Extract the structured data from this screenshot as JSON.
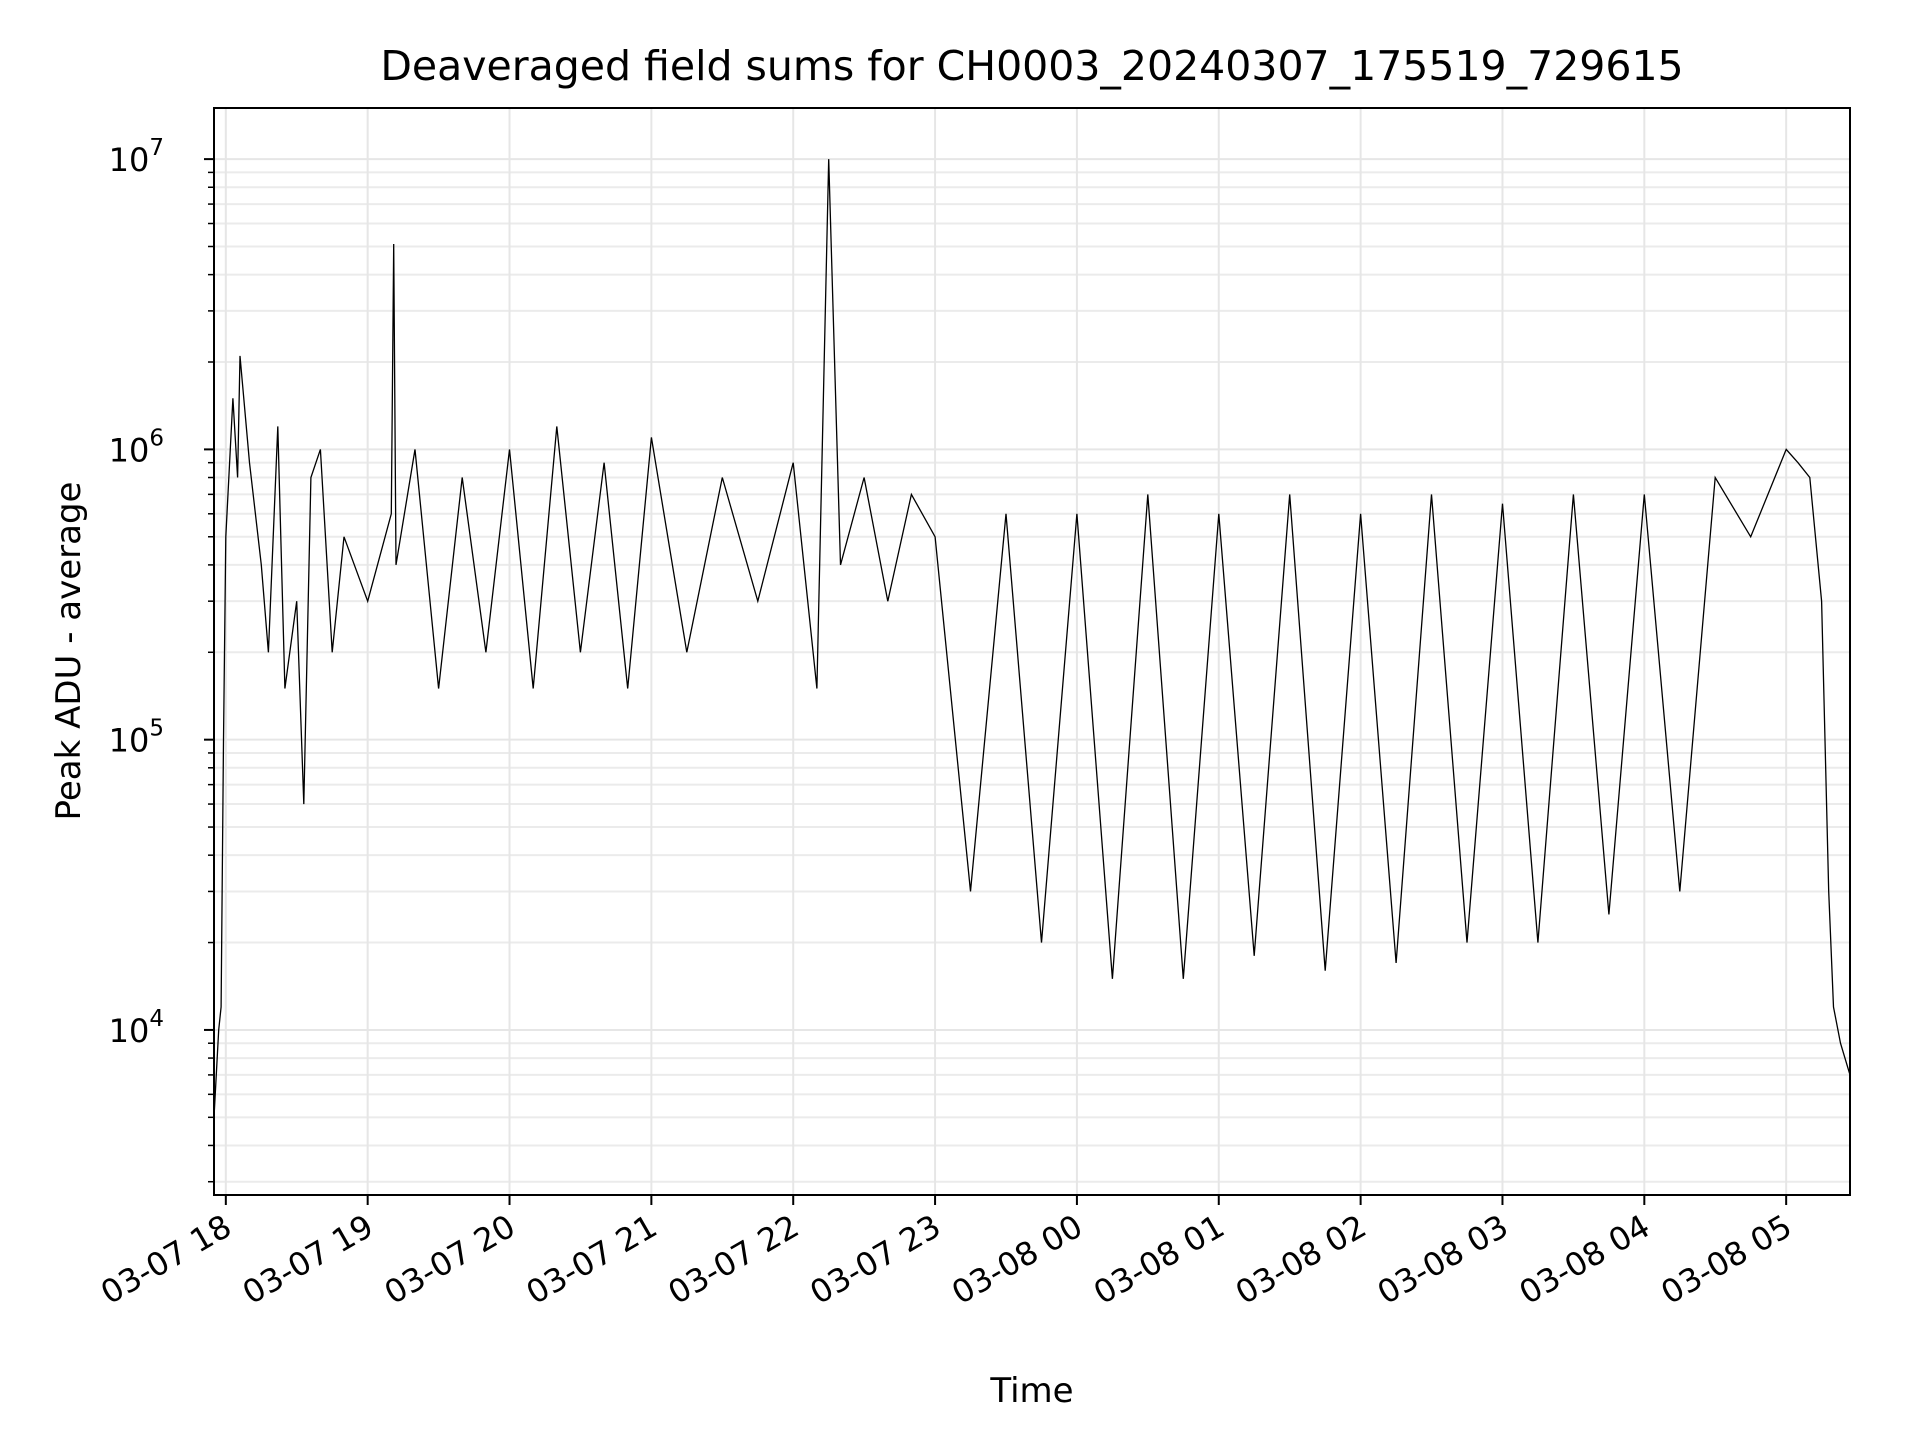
{
  "chart_data": {
    "type": "line",
    "title": "Deaveraged field sums for CH0003_20240307_175519_729615",
    "xlabel": "Time",
    "ylabel": "Peak ADU - average",
    "yscale": "log",
    "ylim": [
      2700,
      15000000
    ],
    "xlim": [
      "2024-03-07 17:55",
      "2024-03-08 05:27"
    ],
    "x_ticks": [
      {
        "t": "2024-03-07 18:00",
        "label": "03-07 18"
      },
      {
        "t": "2024-03-07 19:00",
        "label": "03-07 19"
      },
      {
        "t": "2024-03-07 20:00",
        "label": "03-07 20"
      },
      {
        "t": "2024-03-07 21:00",
        "label": "03-07 21"
      },
      {
        "t": "2024-03-07 22:00",
        "label": "03-07 22"
      },
      {
        "t": "2024-03-07 23:00",
        "label": "03-07 23"
      },
      {
        "t": "2024-03-08 00:00",
        "label": "03-08 00"
      },
      {
        "t": "2024-03-08 01:00",
        "label": "03-08 01"
      },
      {
        "t": "2024-03-08 02:00",
        "label": "03-08 02"
      },
      {
        "t": "2024-03-08 03:00",
        "label": "03-08 03"
      },
      {
        "t": "2024-03-08 04:00",
        "label": "03-08 04"
      },
      {
        "t": "2024-03-08 05:00",
        "label": "03-08 05"
      }
    ],
    "y_ticks": [
      {
        "value": 10000,
        "base": "10",
        "exp": "4"
      },
      {
        "value": 100000,
        "base": "10",
        "exp": "5"
      },
      {
        "value": 1000000,
        "base": "10",
        "exp": "6"
      },
      {
        "value": 10000000,
        "base": "10",
        "exp": "7"
      }
    ],
    "grid": true,
    "line_color": "#000000",
    "series": [
      {
        "x": [
          "2024-03-07 17:55",
          "2024-03-07 17:57",
          "2024-03-07 17:58",
          "2024-03-07 17:59",
          "2024-03-07 18:00",
          "2024-03-07 18:03",
          "2024-03-07 18:05",
          "2024-03-07 18:06",
          "2024-03-07 18:10",
          "2024-03-07 18:15",
          "2024-03-07 18:18",
          "2024-03-07 18:22",
          "2024-03-07 18:25",
          "2024-03-07 18:30",
          "2024-03-07 18:33",
          "2024-03-07 18:36",
          "2024-03-07 18:40",
          "2024-03-07 18:45",
          "2024-03-07 18:50",
          "2024-03-07 19:00",
          "2024-03-07 19:10",
          "2024-03-07 19:11",
          "2024-03-07 19:12",
          "2024-03-07 19:20",
          "2024-03-07 19:30",
          "2024-03-07 19:40",
          "2024-03-07 19:50",
          "2024-03-07 20:00",
          "2024-03-07 20:10",
          "2024-03-07 20:20",
          "2024-03-07 20:30",
          "2024-03-07 20:40",
          "2024-03-07 20:50",
          "2024-03-07 21:00",
          "2024-03-07 21:15",
          "2024-03-07 21:30",
          "2024-03-07 21:45",
          "2024-03-07 22:00",
          "2024-03-07 22:10",
          "2024-03-07 22:15",
          "2024-03-07 22:20",
          "2024-03-07 22:30",
          "2024-03-07 22:40",
          "2024-03-07 22:50",
          "2024-03-07 23:00",
          "2024-03-07 23:15",
          "2024-03-07 23:30",
          "2024-03-07 23:45",
          "2024-03-08 00:00",
          "2024-03-08 00:15",
          "2024-03-08 00:30",
          "2024-03-08 00:45",
          "2024-03-08 01:00",
          "2024-03-08 01:15",
          "2024-03-08 01:30",
          "2024-03-08 01:45",
          "2024-03-08 02:00",
          "2024-03-08 02:15",
          "2024-03-08 02:30",
          "2024-03-08 02:45",
          "2024-03-08 03:00",
          "2024-03-08 03:15",
          "2024-03-08 03:30",
          "2024-03-08 03:45",
          "2024-03-08 04:00",
          "2024-03-08 04:15",
          "2024-03-08 04:30",
          "2024-03-08 04:45",
          "2024-03-08 05:00",
          "2024-03-08 05:05",
          "2024-03-08 05:10",
          "2024-03-08 05:15",
          "2024-03-08 05:18",
          "2024-03-08 05:20",
          "2024-03-08 05:23",
          "2024-03-08 05:27"
        ],
        "values": [
          5000,
          10000,
          12000,
          100000,
          500000,
          1500000,
          800000,
          2100000,
          900000,
          400000,
          200000,
          1200000,
          150000,
          300000,
          60000,
          800000,
          1000000,
          200000,
          500000,
          300000,
          600000,
          5100000,
          400000,
          1000000,
          150000,
          800000,
          200000,
          1000000,
          150000,
          1200000,
          200000,
          900000,
          150000,
          1100000,
          200000,
          800000,
          300000,
          900000,
          150000,
          10000000,
          400000,
          800000,
          300000,
          700000,
          500000,
          30000,
          600000,
          20000,
          600000,
          15000,
          700000,
          15000,
          600000,
          18000,
          700000,
          16000,
          600000,
          17000,
          700000,
          20000,
          650000,
          20000,
          700000,
          25000,
          700000,
          30000,
          800000,
          500000,
          1000000,
          900000,
          800000,
          300000,
          30000,
          12000,
          9000,
          7000
        ]
      }
    ]
  }
}
